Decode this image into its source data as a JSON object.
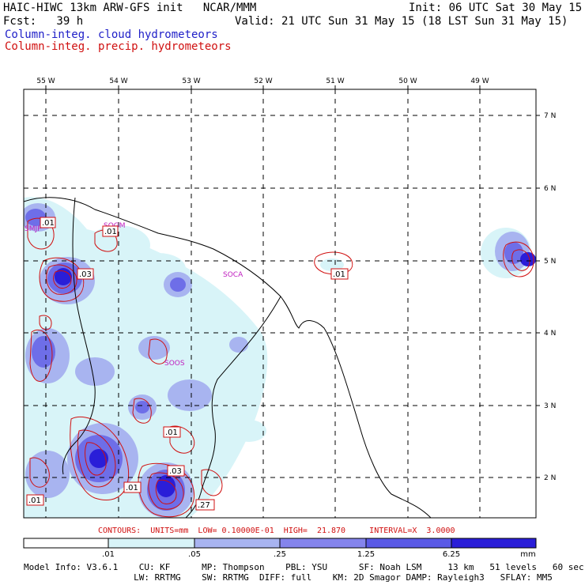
{
  "header": {
    "title": "HAIC-HIWC 13km ARW-GFS init   NCAR/MMM",
    "init": "Init: 06 UTC Sat 30 May 15",
    "fcst": "Fcst:   39 h",
    "valid": "Valid: 21 UTC Sun 31 May 15 (18 LST Sun 31 May 15)",
    "field1": "Column-integ. cloud hydrometeors",
    "field2": "Column-integ. precip. hydrometeors"
  },
  "map": {
    "lon_labels": [
      "55 W",
      "54 W",
      "53 W",
      "52 W",
      "51 W",
      "50 W",
      "49 W"
    ],
    "lat_labels": [
      "7 N",
      "6 N",
      "5 N",
      "4 N",
      "3 N",
      "2 N"
    ],
    "stations": [
      "SOCA",
      "SOOS",
      "SOGM",
      "SMJP"
    ],
    "contour_labels": [
      ".01",
      ".01",
      ".03",
      ".01",
      ".01",
      ".03",
      ".01",
      ".27",
      ".01"
    ],
    "colors": {
      "grid": "#000000",
      "coast": "#000000",
      "cloud_light": "#d8f4f8",
      "cloud_mid": "#a8b4f0",
      "cloud_dark": "#6e6ee8",
      "cloud_darkest": "#2a1ed8",
      "precip_contour": "#d01010",
      "station": "#c020c0"
    }
  },
  "contours_line": "CONTOURS:  UNITS=mm  LOW= 0.10000E-01  HIGH=  21.870     INTERVAL=X  3.0000",
  "colorbar": {
    "labels": [
      ".01",
      ".05",
      ".25",
      "1.25",
      "6.25"
    ],
    "unit": "mm",
    "colors": [
      "#ffffff",
      "#d8f4f8",
      "#a8b4f0",
      "#8484ec",
      "#5a5ae6",
      "#2a1ed8"
    ]
  },
  "model_info": {
    "line1": "Model Info: V3.6.1    CU: KF      MP: Thompson    PBL: YSU      SF: Noah LSM     13 km   51 levels   60 sec",
    "line2": "                     LW: RRTMG    SW: RRTMG  DIFF: full    KM: 2D Smagor DAMP: Rayleigh3   SFLAY: MM5"
  }
}
